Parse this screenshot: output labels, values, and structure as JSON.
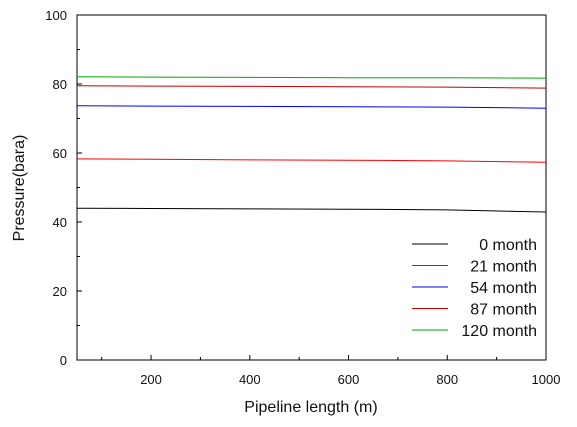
{
  "chart_data": {
    "type": "line",
    "xlabel": "Pipeline length (m)",
    "ylabel": "Pressure(bara)",
    "xlim": [
      50,
      1000
    ],
    "ylim": [
      0,
      100
    ],
    "x_ticks": [
      200,
      400,
      600,
      800,
      1000
    ],
    "x_tick_labels": [
      "200",
      "400",
      "600",
      "800",
      "1000"
    ],
    "y_ticks": [
      0,
      20,
      40,
      60,
      80,
      100
    ],
    "y_tick_labels": [
      "0",
      "20",
      "40",
      "60",
      "80",
      "100"
    ],
    "grid": false,
    "legend_position": "bottom-right",
    "series": [
      {
        "name": "0 month",
        "color": "#000000",
        "x": [
          50,
          200,
          400,
          600,
          800,
          1000
        ],
        "values": [
          44.0,
          43.9,
          43.8,
          43.7,
          43.5,
          42.9
        ]
      },
      {
        "name": "21 month",
        "color": "#ff0000",
        "x": [
          50,
          200,
          400,
          600,
          800,
          1000
        ],
        "values": [
          58.3,
          58.2,
          58.0,
          57.9,
          57.7,
          57.3
        ]
      },
      {
        "name": "54 month",
        "color": "#0000ff",
        "x": [
          50,
          200,
          400,
          600,
          800,
          1000
        ],
        "values": [
          73.7,
          73.6,
          73.5,
          73.4,
          73.3,
          73.0
        ]
      },
      {
        "name": "87 month",
        "color": "#cc0000",
        "x": [
          50,
          200,
          400,
          600,
          800,
          1000
        ],
        "values": [
          79.5,
          79.4,
          79.3,
          79.2,
          79.1,
          78.8
        ]
      },
      {
        "name": "120 month",
        "color": "#00aa00",
        "x": [
          50,
          200,
          400,
          600,
          800,
          1000
        ],
        "values": [
          82.1,
          82.0,
          81.9,
          81.8,
          81.8,
          81.7
        ]
      }
    ]
  }
}
